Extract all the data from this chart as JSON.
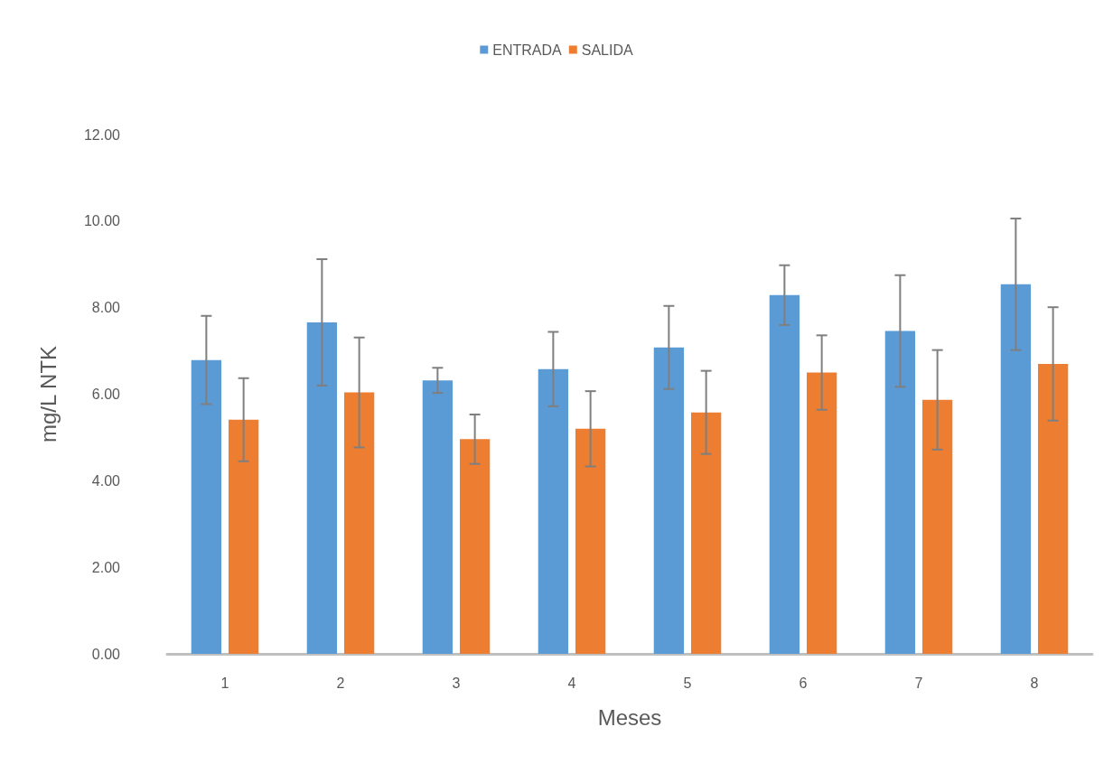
{
  "chart_data": {
    "type": "bar",
    "xlabel": "Meses",
    "ylabel": "mg/L NTK",
    "categories": [
      "1",
      "2",
      "3",
      "4",
      "5",
      "6",
      "7",
      "8"
    ],
    "series": [
      {
        "name": "ENTRADA",
        "color": "#5b9bd5",
        "values": [
          6.79,
          7.66,
          6.32,
          6.58,
          7.08,
          8.29,
          7.46,
          8.54
        ],
        "errors": [
          1.02,
          1.46,
          0.29,
          0.86,
          0.96,
          0.69,
          1.29,
          1.52
        ]
      },
      {
        "name": "SALIDA",
        "color": "#ed7d31",
        "values": [
          5.41,
          6.04,
          4.96,
          5.2,
          5.58,
          6.5,
          5.87,
          6.7
        ],
        "errors": [
          0.96,
          1.27,
          0.57,
          0.87,
          0.96,
          0.86,
          1.15,
          1.31
        ]
      }
    ],
    "ylim": [
      0,
      12
    ],
    "yticks": [
      {
        "value": 0,
        "label": "0.00"
      },
      {
        "value": 2,
        "label": "2.00"
      },
      {
        "value": 4,
        "label": "4.00"
      },
      {
        "value": 6,
        "label": "6.00"
      },
      {
        "value": 8,
        "label": "8.00"
      },
      {
        "value": 10,
        "label": "10.00"
      },
      {
        "value": 12,
        "label": "12.00"
      }
    ],
    "grid": false,
    "legend": "top"
  }
}
